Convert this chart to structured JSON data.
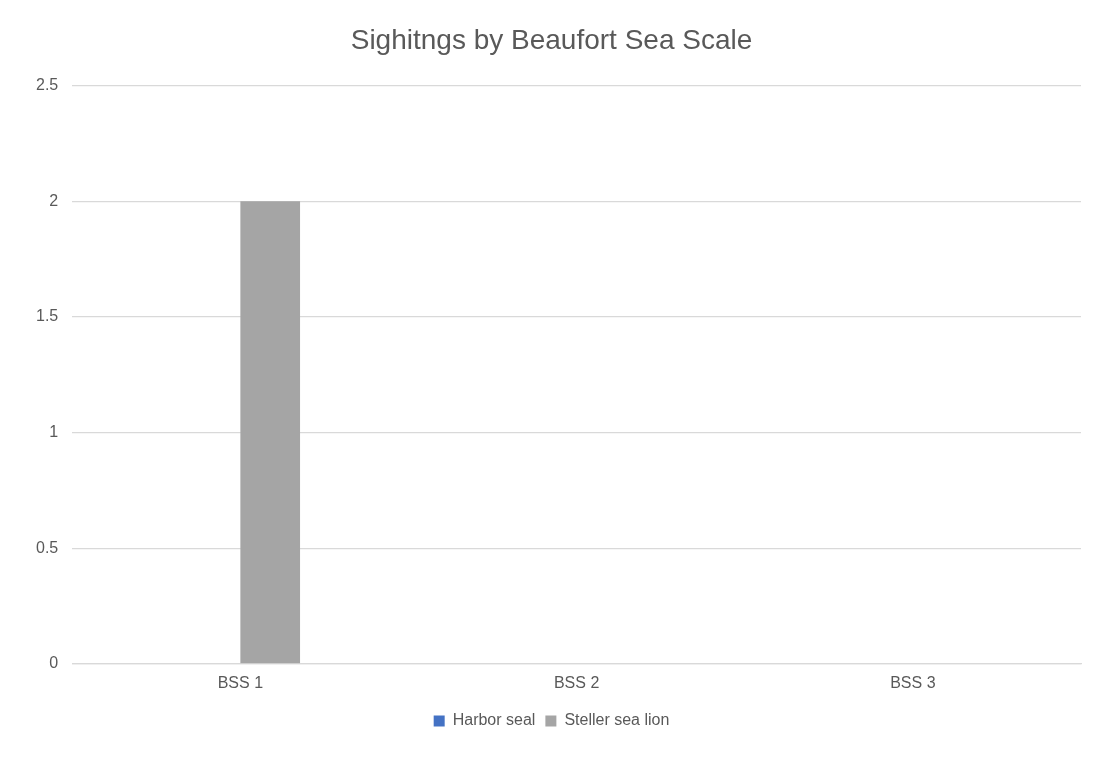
{
  "chart_data": {
    "type": "bar",
    "title": "Sighitngs by Beaufort Sea Scale",
    "categories": [
      "BSS 1",
      "BSS 2",
      "BSS 3"
    ],
    "series": [
      {
        "name": "Harbor seal",
        "color": "#4472c4",
        "values": [
          0,
          0,
          0
        ]
      },
      {
        "name": "Steller sea lion",
        "color": "#a5a5a5",
        "values": [
          2,
          0,
          0
        ]
      }
    ],
    "ylim": [
      0,
      2.5
    ],
    "yticks": [
      0,
      0.5,
      1,
      1.5,
      2,
      2.5
    ],
    "grid": "y",
    "legend": "bottom"
  }
}
